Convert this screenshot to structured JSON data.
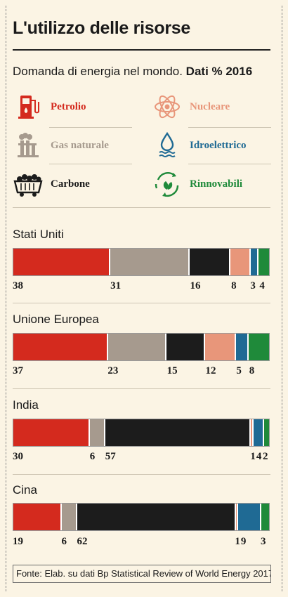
{
  "title": "L'utilizzo delle risorse",
  "subtitle_main": "Domanda di energia nel mondo.",
  "subtitle_bold": "Dati % 2016",
  "source": "Fonte: Elab. su dati Bp Statistical Review of World Energy 2017",
  "colors": {
    "petrolio": "#d42a1e",
    "gas": "#a69a8e",
    "carbone": "#1c1c1c",
    "nucleare": "#e8967a",
    "idroelettrico": "#1f6a94",
    "rinnovabili": "#1f8a3a"
  },
  "legend": [
    {
      "label": "Petrolio",
      "icon": "oil-pump-icon",
      "color": "#d42a1e"
    },
    {
      "label": "Nucleare",
      "icon": "atom-icon",
      "color": "#e8967a"
    },
    {
      "label": "Gas naturale",
      "icon": "gas-plant-icon",
      "color": "#a69a8e"
    },
    {
      "label": "Idroelettrico",
      "icon": "water-drop-icon",
      "color": "#1f6a94"
    },
    {
      "label": "Carbone",
      "icon": "coal-cart-icon",
      "color": "#1c1c1c"
    },
    {
      "label": "Rinnovabili",
      "icon": "recycle-leaf-icon",
      "color": "#1f8a3a"
    }
  ],
  "chart_data": {
    "type": "bar",
    "stacked": true,
    "orientation": "horizontal",
    "unit": "%",
    "series_names": [
      "Petrolio",
      "Gas naturale",
      "Carbone",
      "Nucleare",
      "Idroelettrico",
      "Rinnovabili"
    ],
    "countries": [
      {
        "name": "Stati Uniti",
        "values": [
          38,
          31,
          16,
          8,
          3,
          4
        ]
      },
      {
        "name": "Unione Europea",
        "values": [
          37,
          23,
          15,
          12,
          5,
          8
        ]
      },
      {
        "name": "India",
        "values": [
          30,
          6,
          57,
          1,
          4,
          2
        ]
      },
      {
        "name": "Cina",
        "values": [
          19,
          6,
          62,
          1,
          9,
          3
        ]
      }
    ]
  }
}
